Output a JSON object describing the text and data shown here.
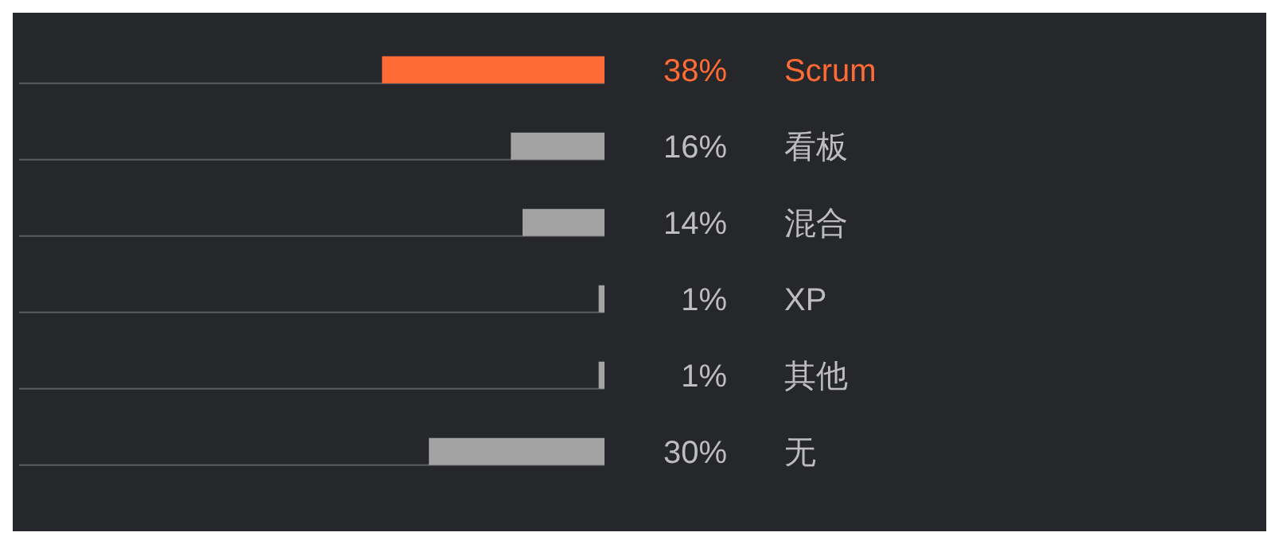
{
  "chart_data": {
    "type": "bar",
    "orientation": "horizontal",
    "categories": [
      "Scrum",
      "看板",
      "混合",
      "XP",
      "其他",
      "无"
    ],
    "values": [
      38,
      16,
      14,
      1,
      1,
      30
    ],
    "colors": [
      "#ff6b35",
      "#a3a3a3",
      "#a3a3a3",
      "#a3a3a3",
      "#a3a3a3",
      "#a3a3a3"
    ],
    "value_labels": [
      "38%",
      "16%",
      "14%",
      "1%",
      "1%",
      "30%"
    ],
    "xlim": [
      100,
      0
    ],
    "tick_labels": "y",
    "grid": false,
    "legend": false
  }
}
